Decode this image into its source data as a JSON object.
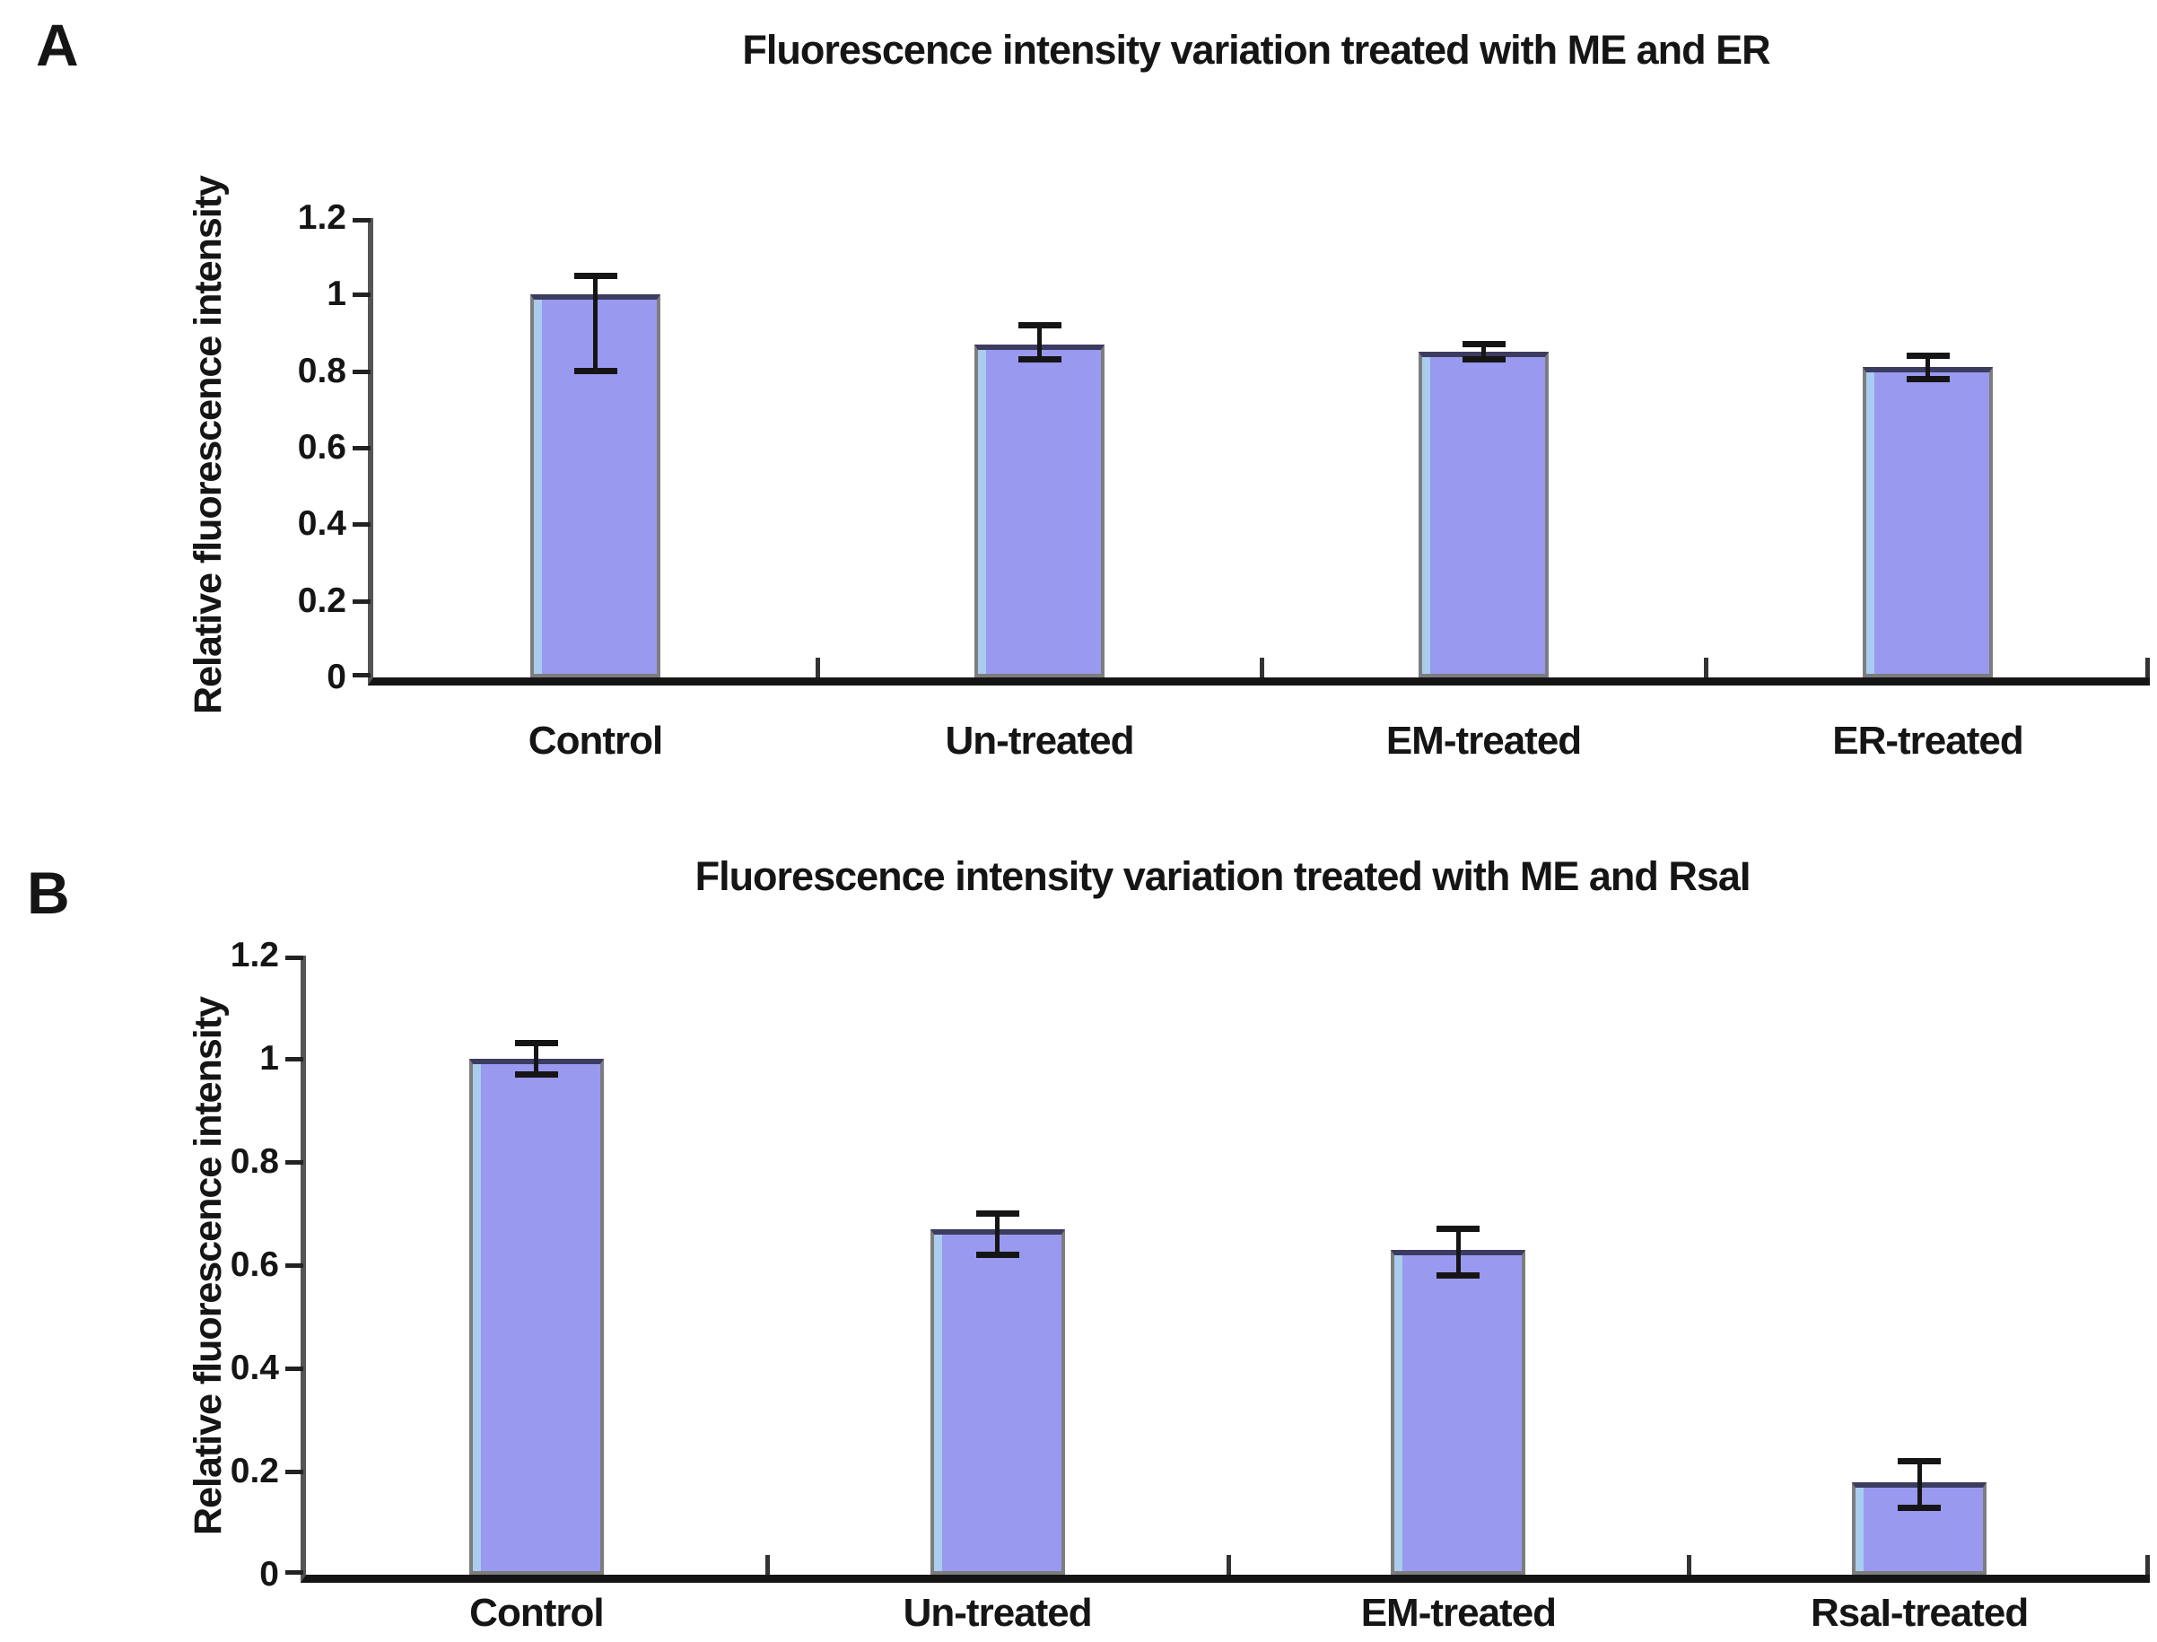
{
  "figure_background": "#ffffff",
  "panel_letters": [
    "A",
    "B"
  ],
  "colors": {
    "bar_fill": "#9999f0",
    "bar_stripe": "#aaccee",
    "bar_border": "#7d7d7d",
    "bar_top_edge": "#3c3c60",
    "error_bar": "#151515",
    "y_axis": "#555555",
    "x_axis": "#151515",
    "text": "#151515"
  },
  "chart_data": [
    {
      "type": "bar",
      "panel": "A",
      "title": "Fluorescence intensity variation treated with ME and ER",
      "ylabel": "Relative fluorescence intensity",
      "xlabel": "",
      "categories": [
        "Control",
        "Un-treated",
        "EM-treated",
        "ER-treated"
      ],
      "values": [
        1.0,
        0.87,
        0.85,
        0.81
      ],
      "error_up": [
        0.05,
        0.05,
        0.02,
        0.03
      ],
      "error_down": [
        0.2,
        0.04,
        0.02,
        0.03
      ],
      "ylim": [
        0,
        1.2
      ],
      "yticks": [
        0,
        0.2,
        0.4,
        0.6,
        0.8,
        1,
        1.2
      ],
      "ytick_labels": [
        "0",
        "0.2",
        "0.4",
        "0.6",
        "0.8",
        "1",
        "1.2"
      ],
      "grid": false,
      "legend": null
    },
    {
      "type": "bar",
      "panel": "B",
      "title": "Fluorescence intensity variation treated with ME and RsaI",
      "ylabel": "Relative fluorescence intensity",
      "xlabel": "",
      "categories": [
        "Control",
        "Un-treated",
        "EM-treated",
        "RsaI-treated"
      ],
      "values": [
        1.0,
        0.67,
        0.63,
        0.18
      ],
      "error_up": [
        0.03,
        0.03,
        0.04,
        0.04
      ],
      "error_down": [
        0.03,
        0.05,
        0.05,
        0.05
      ],
      "ylim": [
        0,
        1.2
      ],
      "yticks": [
        0,
        0.2,
        0.4,
        0.6,
        0.8,
        1,
        1.2
      ],
      "ytick_labels": [
        "0",
        "0.2",
        "0.4",
        "0.6",
        "0.8",
        "1",
        "1.2"
      ],
      "grid": false,
      "legend": null
    }
  ]
}
